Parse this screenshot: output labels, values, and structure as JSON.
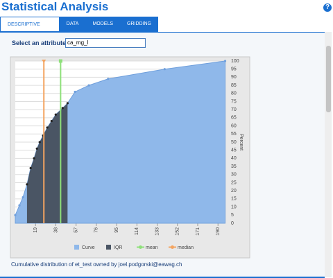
{
  "header": {
    "title": "Statistical Analysis",
    "help": "?"
  },
  "tabs": [
    "Descriptive Statistics",
    "Data",
    "Models",
    "Gridding"
  ],
  "attribute": {
    "label": "Select an attribute:",
    "value": "ca_mg_l"
  },
  "chart_data": {
    "type": "area",
    "y_label": "Percent",
    "x": [
      0,
      3.9,
      7.2,
      11,
      14.4,
      17.6,
      20.3,
      22.9,
      26.1,
      30,
      34,
      37.9,
      44.4,
      49,
      56,
      69,
      87,
      140,
      196.7
    ],
    "values": [
      5,
      11,
      16,
      24,
      34,
      40,
      46,
      50,
      54,
      59,
      63,
      67,
      71,
      74,
      81,
      85,
      89,
      95,
      100
    ],
    "xlim": [
      0,
      197
    ],
    "ylim": [
      0,
      100
    ],
    "xticks": [
      19,
      38,
      57,
      76,
      95,
      114,
      133,
      152,
      171,
      190
    ],
    "yticks": [
      0,
      5,
      10,
      15,
      20,
      25,
      30,
      35,
      40,
      45,
      50,
      55,
      60,
      65,
      70,
      75,
      80,
      85,
      90,
      95,
      100
    ],
    "curve": {
      "name": "Curve",
      "color": "#8fb8ea"
    },
    "iqr": {
      "name": "IQR",
      "color": "#4a5564",
      "range": [
        11,
        49
      ]
    },
    "mean": {
      "name": "mean",
      "color": "#8ee07a",
      "value": 42.5
    },
    "median": {
      "name": "median",
      "color": "#f4a460",
      "value": 26.8
    }
  },
  "caption": "Cumulative distribution of et_test owned by joel.podgorski@eawag.ch"
}
